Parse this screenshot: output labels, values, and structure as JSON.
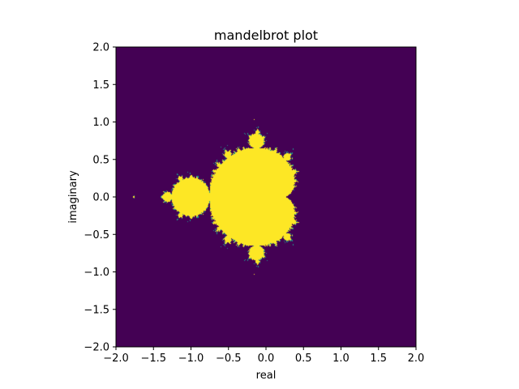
{
  "chart_data": {
    "type": "heatmap",
    "title": "mandelbrot plot",
    "xlabel": "real",
    "ylabel": "imaginary",
    "xlim": [
      -2.0,
      2.0
    ],
    "ylim": [
      -2.0,
      2.0
    ],
    "xticks": [
      "−2.0",
      "−1.5",
      "−1.0",
      "−0.5",
      "0.0",
      "0.5",
      "1.0",
      "1.5",
      "2.0"
    ],
    "yticks": [
      "−2.0",
      "−1.5",
      "−1.0",
      "−0.5",
      "0.0",
      "0.5",
      "1.0",
      "1.5",
      "2.0"
    ],
    "xtick_values": [
      -2.0,
      -1.5,
      -1.0,
      -0.5,
      0.0,
      0.5,
      1.0,
      1.5,
      2.0
    ],
    "ytick_values": [
      -2.0,
      -1.5,
      -1.0,
      -0.5,
      0.0,
      0.5,
      1.0,
      1.5,
      2.0
    ],
    "grid": false,
    "colormap": "viridis",
    "colors": {
      "outside": "#440154",
      "inside": "#fde725",
      "boundary": "#21918c"
    }
  }
}
